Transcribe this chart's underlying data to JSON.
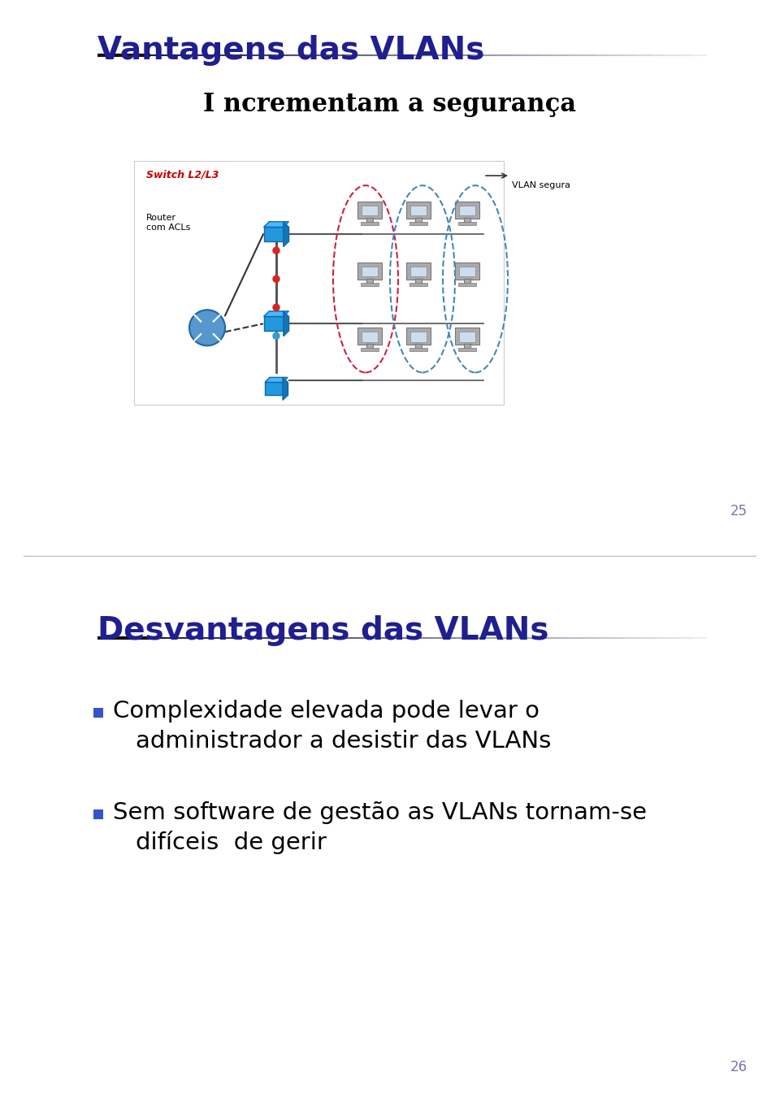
{
  "slide1_title": "Vantagens das VLANs",
  "slide1_subtitle": "I ncrementam a segurança",
  "slide1_page": "25",
  "slide2_title": "Desvantagens das VLANs",
  "slide2_page": "26",
  "bullet1_line1": "Complexidade elevada pode levar o",
  "bullet1_line2": "administrador a desistir das VLANs",
  "bullet2_line1": "Sem software de gestão as VLANs tornam-se",
  "bullet2_line2": "difíceis  de gerir",
  "title_color": "#1F1F8F",
  "text_color": "#000000",
  "bg_color": "#FFFFFF",
  "divider_color": "#BBBBBB",
  "page_color": "#7777AA",
  "switch_label_color": "#CC0000",
  "subtitle_color": "#000000"
}
